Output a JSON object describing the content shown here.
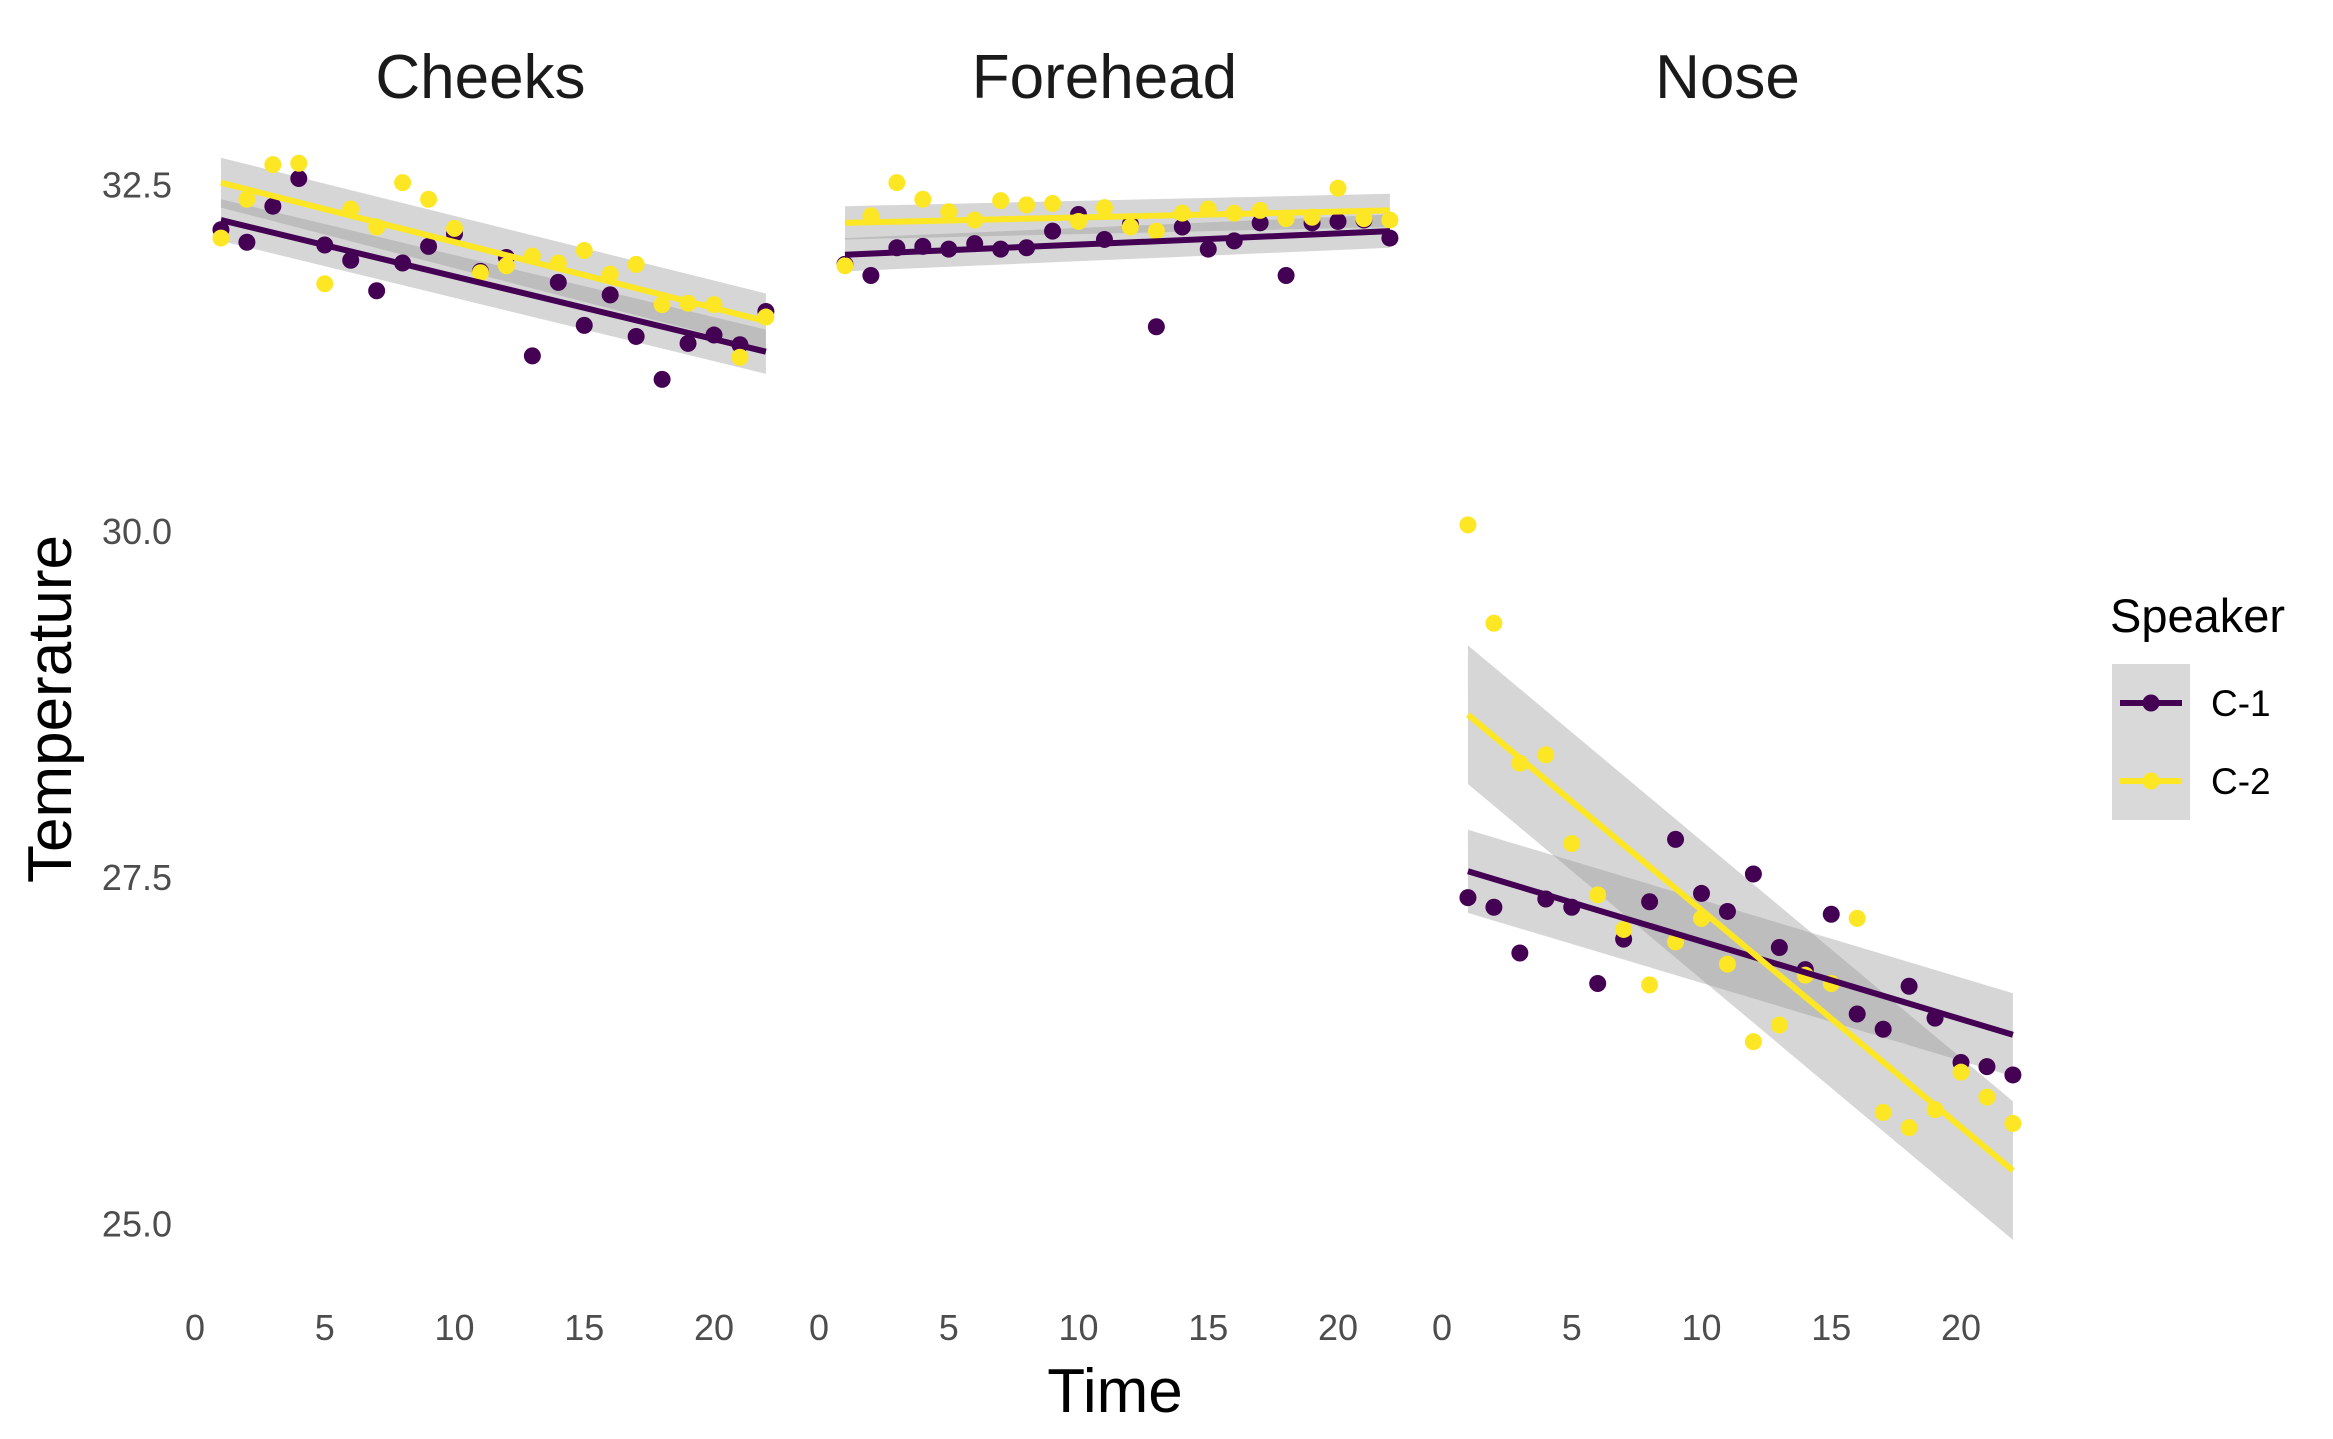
{
  "chart_data": {
    "type": "scatter",
    "xlabel": "Time",
    "ylabel": "Temperature",
    "xlim": [
      0,
      22
    ],
    "ylim": [
      24.6,
      32.9
    ],
    "x_ticks": [
      0,
      5,
      10,
      15,
      20
    ],
    "y_ticks": [
      25.0,
      27.5,
      30.0,
      32.5
    ],
    "y_tick_labels": [
      "25.0",
      "27.5",
      "30.0",
      "32.5"
    ],
    "grid": false,
    "legend": {
      "title": "Speaker",
      "position": "right",
      "entries": [
        {
          "label": "C-1",
          "color": "#440154"
        },
        {
          "label": "C-2",
          "color": "#FDE725"
        }
      ]
    },
    "series_colors": {
      "C-1": "#440154",
      "C-2": "#FDE725"
    },
    "panels": [
      {
        "title": "Cheeks",
        "series": [
          {
            "name": "C-1",
            "x": [
              1,
              2,
              3,
              4,
              5,
              6,
              7,
              8,
              9,
              10,
              11,
              12,
              13,
              14,
              15,
              16,
              17,
              18,
              19,
              20,
              21,
              22
            ],
            "y": [
              32.18,
              32.09,
              32.35,
              32.55,
              32.07,
              31.96,
              31.74,
              31.94,
              32.06,
              32.15,
              31.88,
              31.98,
              31.27,
              31.8,
              31.49,
              31.71,
              31.41,
              31.1,
              31.36,
              31.42,
              31.35,
              31.59
            ],
            "fit": [
              32.25,
              31.3
            ],
            "band": [
              0.15,
              0.16
            ]
          },
          {
            "name": "C-2",
            "x": [
              1,
              2,
              3,
              4,
              5,
              6,
              7,
              8,
              9,
              10,
              11,
              12,
              13,
              14,
              15,
              16,
              17,
              18,
              19,
              20,
              21,
              22
            ],
            "y": [
              32.12,
              32.4,
              32.65,
              32.66,
              31.79,
              32.33,
              32.2,
              32.52,
              32.4,
              32.19,
              31.87,
              31.92,
              31.99,
              31.94,
              32.03,
              31.86,
              31.93,
              31.64,
              31.65,
              31.64,
              31.26,
              31.55
            ],
            "fit": [
              32.52,
              31.52
            ],
            "band": [
              0.18,
              0.2
            ]
          }
        ]
      },
      {
        "title": "Forehead",
        "series": [
          {
            "name": "C-1",
            "x": [
              1,
              2,
              3,
              4,
              5,
              6,
              7,
              8,
              9,
              10,
              11,
              12,
              13,
              14,
              15,
              16,
              17,
              18,
              19,
              20,
              21,
              22
            ],
            "y": [
              31.93,
              31.85,
              32.05,
              32.06,
              32.04,
              32.08,
              32.04,
              32.05,
              32.17,
              32.29,
              32.11,
              32.22,
              31.48,
              32.2,
              32.04,
              32.1,
              32.23,
              31.85,
              32.23,
              32.24,
              32.25,
              32.12
            ],
            "fit": [
              32.0,
              32.17
            ],
            "band": [
              0.12,
              0.12
            ]
          },
          {
            "name": "C-2",
            "x": [
              1,
              2,
              3,
              4,
              5,
              6,
              7,
              8,
              9,
              10,
              11,
              12,
              13,
              14,
              15,
              16,
              17,
              18,
              19,
              20,
              21,
              22
            ],
            "y": [
              31.92,
              32.28,
              32.52,
              32.4,
              32.31,
              32.25,
              32.39,
              32.36,
              32.37,
              32.24,
              32.34,
              32.2,
              32.17,
              32.3,
              32.33,
              32.3,
              32.32,
              32.26,
              32.27,
              32.48,
              32.26,
              32.25
            ],
            "fit": [
              32.23,
              32.32
            ],
            "band": [
              0.12,
              0.12
            ]
          }
        ]
      },
      {
        "title": "Nose",
        "series": [
          {
            "name": "C-1",
            "x": [
              1,
              2,
              3,
              4,
              5,
              6,
              7,
              8,
              9,
              10,
              11,
              12,
              13,
              14,
              15,
              16,
              17,
              18,
              19,
              20,
              21,
              22
            ],
            "y": [
              27.36,
              27.29,
              26.96,
              27.35,
              27.29,
              26.74,
              27.06,
              27.33,
              27.78,
              27.39,
              27.26,
              27.53,
              27.0,
              26.84,
              27.24,
              26.52,
              26.41,
              26.72,
              26.49,
              26.17,
              26.14,
              26.08
            ],
            "fit": [
              27.55,
              26.37
            ],
            "band": [
              0.3,
              0.3
            ]
          },
          {
            "name": "C-2",
            "x": [
              1,
              2,
              3,
              4,
              5,
              6,
              7,
              8,
              9,
              10,
              11,
              12,
              13,
              14,
              15,
              16,
              17,
              18,
              19,
              20,
              21,
              22
            ],
            "y": [
              30.05,
              29.34,
              28.33,
              28.39,
              27.75,
              27.38,
              27.13,
              26.73,
              27.04,
              27.21,
              26.88,
              26.32,
              26.44,
              26.8,
              26.74,
              27.21,
              25.81,
              25.7,
              25.83,
              26.1,
              25.92,
              25.73
            ],
            "fit": [
              28.68,
              25.39
            ],
            "band": [
              0.5,
              0.5
            ]
          }
        ]
      }
    ]
  }
}
